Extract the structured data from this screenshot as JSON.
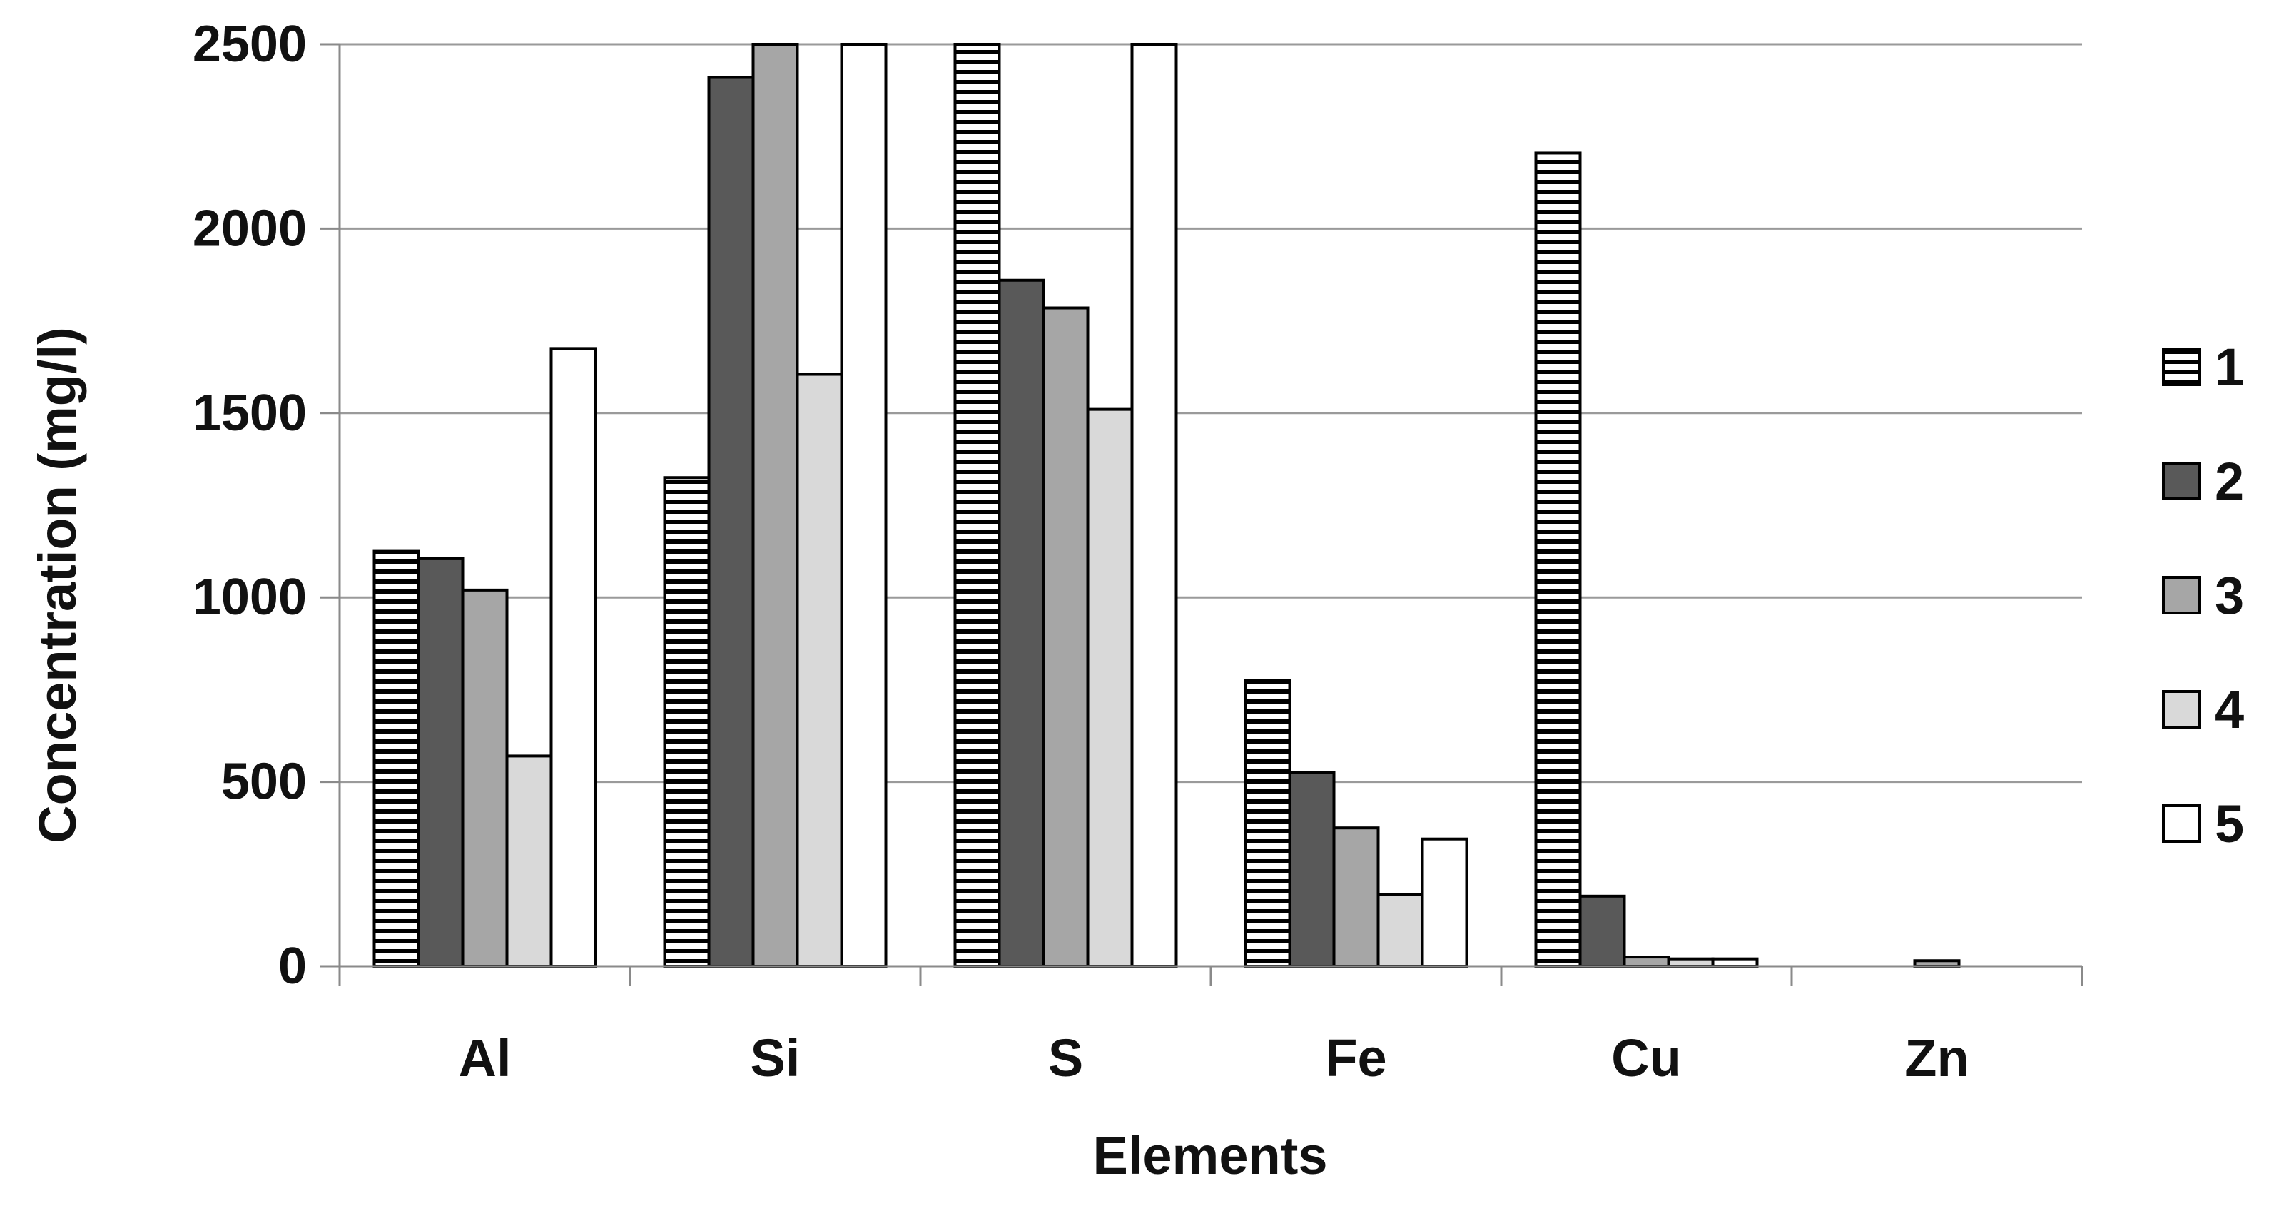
{
  "chart_data": {
    "type": "bar",
    "xlabel": "Elements",
    "ylabel": "Concentration (mg/l)",
    "ylim": [
      0,
      2500
    ],
    "yticks": [
      0,
      500,
      1000,
      1500,
      2000,
      2500
    ],
    "grid": true,
    "legend_position": "right",
    "categories": [
      "Al",
      "Si",
      "S",
      "Fe",
      "Cu",
      "Zn"
    ],
    "series": [
      {
        "name": "1",
        "fill": "hatch-horizontal",
        "color": "#ffffff",
        "values": [
          1125,
          1325,
          2500,
          775,
          2205,
          0
        ]
      },
      {
        "name": "2",
        "fill": "solid",
        "color": "#595959",
        "values": [
          1105,
          2410,
          1860,
          525,
          190,
          0
        ]
      },
      {
        "name": "3",
        "fill": "solid",
        "color": "#a6a6a6",
        "values": [
          1020,
          2500,
          1785,
          375,
          25,
          15
        ]
      },
      {
        "name": "4",
        "fill": "solid",
        "color": "#d9d9d9",
        "values": [
          570,
          1605,
          1510,
          195,
          20,
          0
        ]
      },
      {
        "name": "5",
        "fill": "solid",
        "color": "#ffffff",
        "values": [
          1675,
          2500,
          2500,
          345,
          20,
          0
        ]
      }
    ]
  }
}
